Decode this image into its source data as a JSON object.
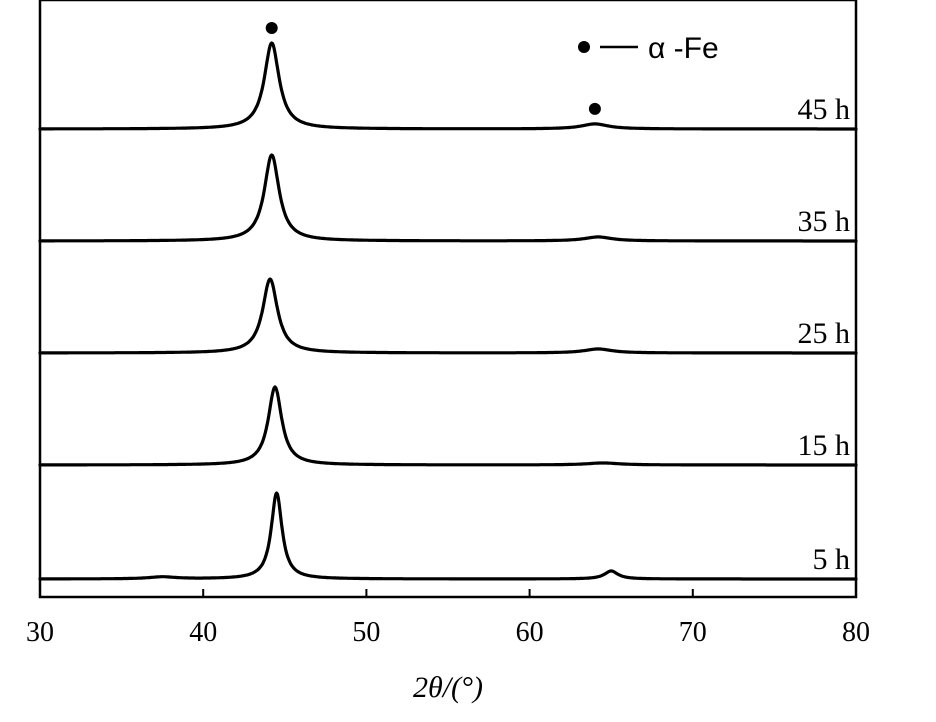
{
  "chart_data": {
    "type": "line",
    "xlabel": "2θ/(°)",
    "xlim": [
      30,
      80
    ],
    "xticks": [
      30,
      40,
      50,
      60,
      70,
      80
    ],
    "yaxis": "stacked offset intensity (unlabeled)",
    "legend": {
      "marker": "filled-circle",
      "label": "α -Fe",
      "position": "top-right"
    },
    "series": [
      {
        "name": "45 h",
        "peaks": [
          {
            "x": 44.2,
            "height": 0.86,
            "width": 0.55
          },
          {
            "x": 64.0,
            "height": 0.05,
            "width": 1.0
          }
        ],
        "phase_markers_x": [
          44.2,
          64.0
        ]
      },
      {
        "name": "35 h",
        "peaks": [
          {
            "x": 44.2,
            "height": 0.86,
            "width": 0.55
          },
          {
            "x": 64.2,
            "height": 0.04,
            "width": 1.0
          }
        ]
      },
      {
        "name": "25 h",
        "peaks": [
          {
            "x": 44.1,
            "height": 0.74,
            "width": 0.55
          },
          {
            "x": 64.2,
            "height": 0.04,
            "width": 1.0
          }
        ]
      },
      {
        "name": "15 h",
        "peaks": [
          {
            "x": 44.4,
            "height": 0.78,
            "width": 0.5
          },
          {
            "x": 64.5,
            "height": 0.02,
            "width": 1.2
          }
        ]
      },
      {
        "name": "5 h",
        "peaks": [
          {
            "x": 37.5,
            "height": 0.02,
            "width": 1.0
          },
          {
            "x": 44.5,
            "height": 0.86,
            "width": 0.4
          },
          {
            "x": 65.0,
            "height": 0.08,
            "width": 0.5
          }
        ]
      }
    ]
  }
}
